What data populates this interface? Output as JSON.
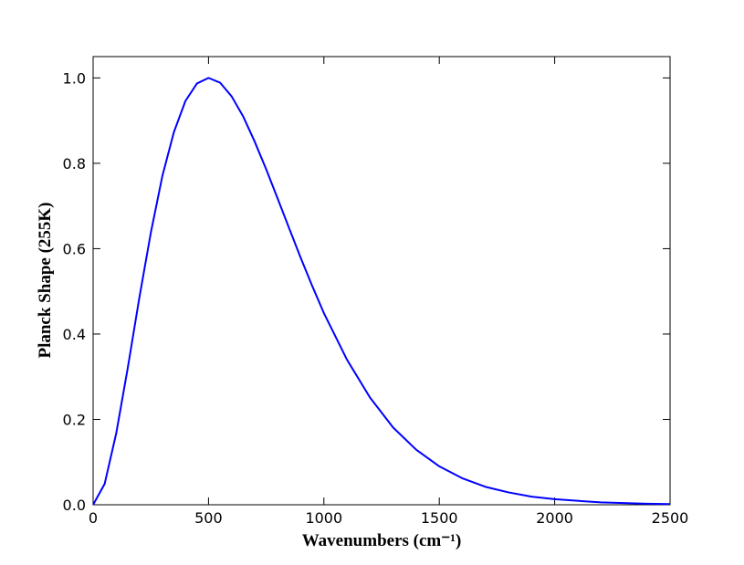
{
  "chart_data": {
    "type": "line",
    "xlabel": "Wavenumbers (cm⁻¹)",
    "ylabel": "Planck Shape (255K)",
    "x": [
      0,
      50,
      100,
      150,
      200,
      250,
      300,
      350,
      400,
      450,
      500,
      550,
      600,
      650,
      700,
      750,
      800,
      850,
      900,
      950,
      1000,
      1100,
      1200,
      1300,
      1400,
      1500,
      1600,
      1700,
      1800,
      1900,
      2000,
      2200,
      2400,
      2500
    ],
    "series": [
      {
        "color": "#0000ff",
        "values": [
          0,
          0.049,
          0.167,
          0.32,
          0.484,
          0.637,
          0.77,
          0.873,
          0.946,
          0.987,
          1.0,
          0.989,
          0.957,
          0.91,
          0.851,
          0.786,
          0.717,
          0.647,
          0.578,
          0.512,
          0.449,
          0.34,
          0.251,
          0.181,
          0.129,
          0.09,
          0.062,
          0.042,
          0.029,
          0.019,
          0.013,
          0.0055,
          0.0023,
          0.0015
        ]
      }
    ],
    "xlim": [
      0,
      2500
    ],
    "xticks": [
      0,
      500,
      1000,
      1500,
      2000,
      2500
    ],
    "ylim": [
      0,
      1.05
    ],
    "yticks": [
      {
        "value": 0,
        "label": "0.0"
      },
      0.2,
      0.4,
      0.6,
      0.8,
      {
        "value": 1,
        "label": "1.0"
      }
    ],
    "grid": false
  }
}
